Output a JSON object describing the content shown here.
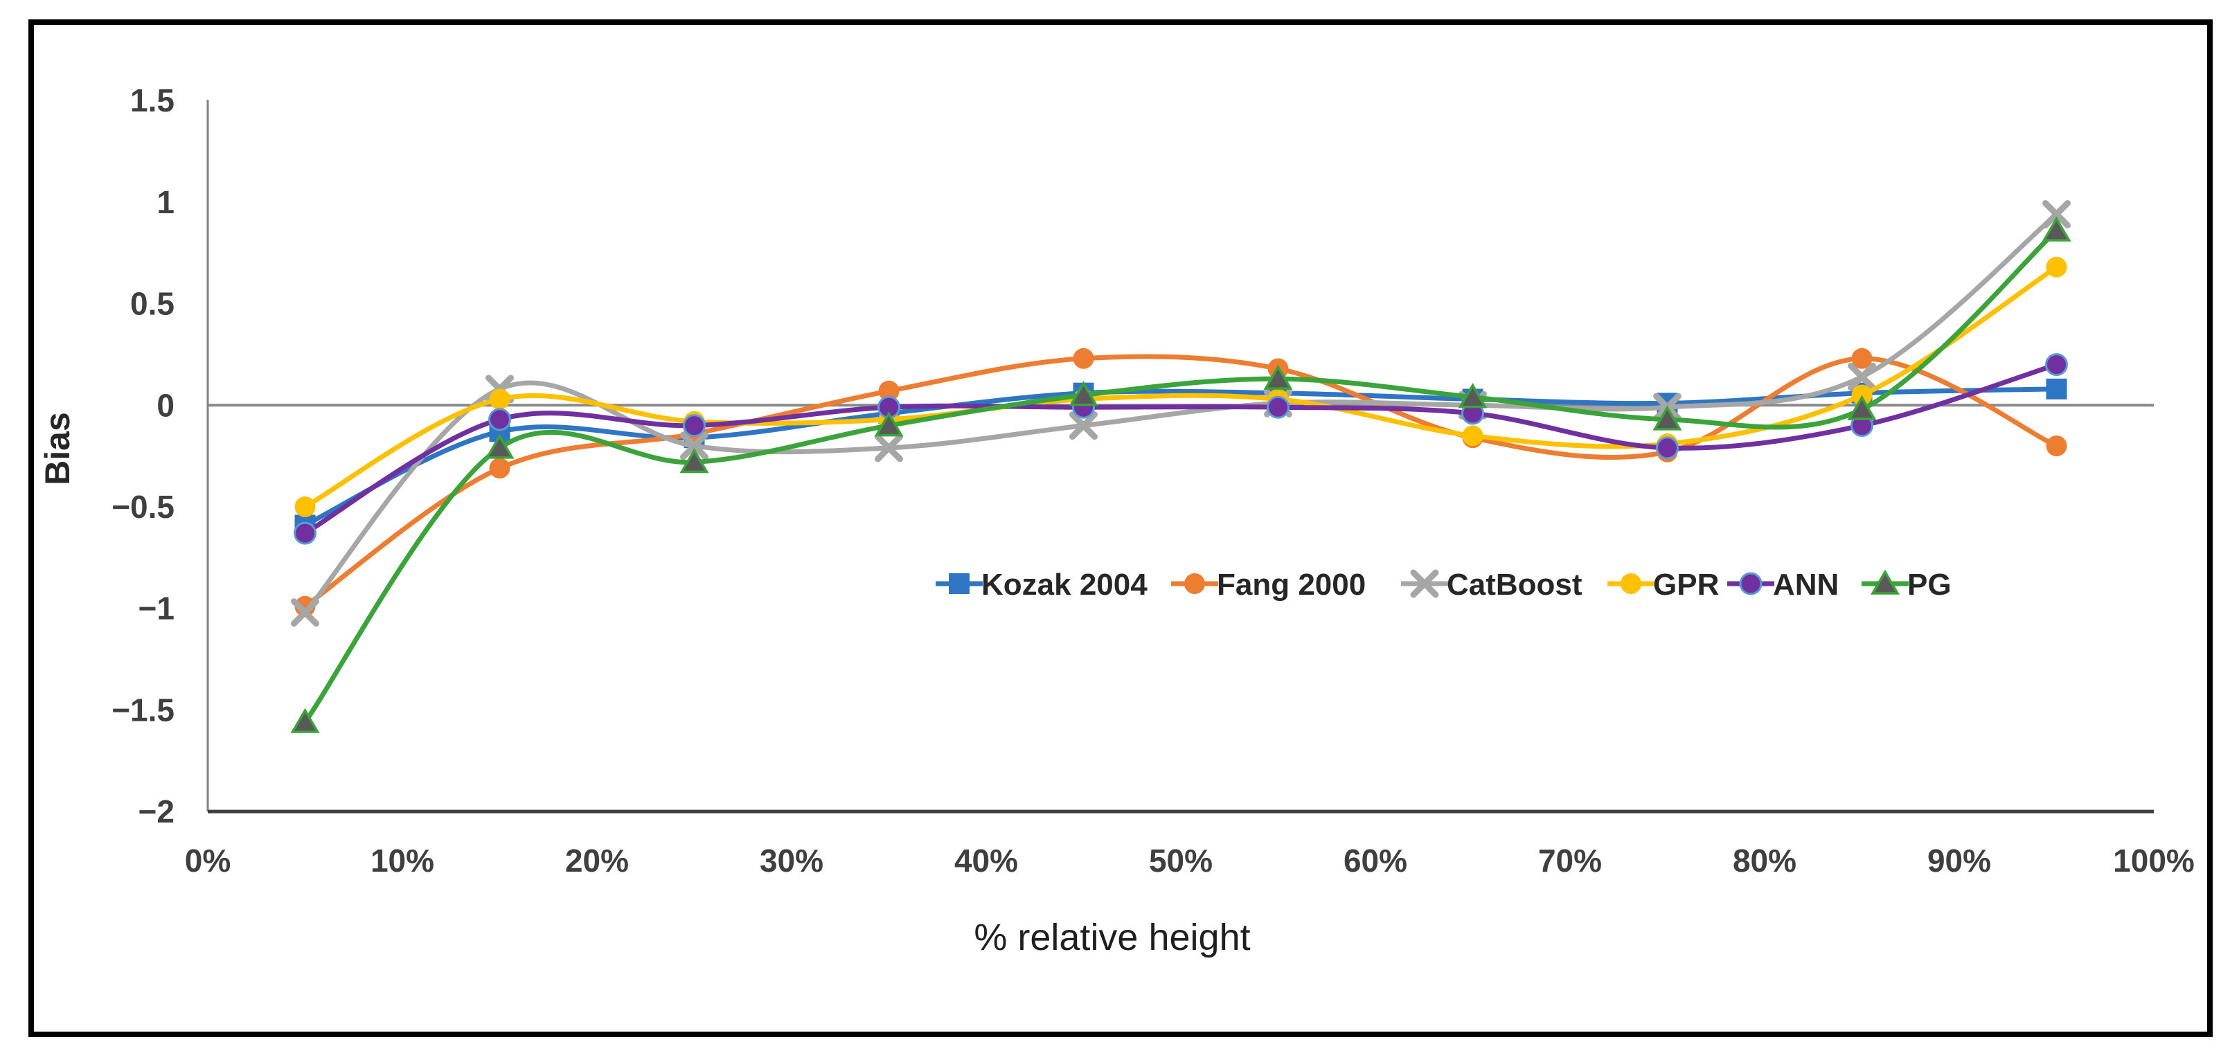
{
  "figure": {
    "background": "#ffffff",
    "border_color": "#000000"
  },
  "chart_data": {
    "type": "line",
    "style": "smoothed-lines-with-markers",
    "title": "",
    "xlabel": "% relative height",
    "ylabel": "Bias",
    "ylim": [
      -2,
      1.5
    ],
    "xlim_pct": [
      0,
      100
    ],
    "grid": "zero-line-only",
    "legend_position": "inside-plot-center-right",
    "x_pct": [
      5,
      15,
      25,
      35,
      45,
      55,
      65,
      75,
      85,
      95
    ],
    "x_tick_values": [
      0,
      10,
      20,
      30,
      40,
      50,
      60,
      70,
      80,
      90,
      100
    ],
    "x_tick_labels": [
      "0%",
      "10%",
      "20%",
      "30%",
      "40%",
      "50%",
      "60%",
      "70%",
      "80%",
      "90%",
      "100%"
    ],
    "y_tick_values": [
      1.5,
      1,
      0.5,
      0,
      -0.5,
      -1,
      -1.5,
      -2
    ],
    "y_tick_labels": [
      "1.5",
      "1",
      "0.5",
      "0",
      "−0.5",
      "−1",
      "−1.5",
      "−2"
    ],
    "axis_line_color": "#808080",
    "zero_line_color": "#898989",
    "bottom_axis_color": "#3f3f3f",
    "tick_label_color": "#3f3f3f",
    "series": [
      {
        "name": "Kozak 2004",
        "color": "#2E75C3",
        "marker": "square",
        "values": [
          -0.59,
          -0.13,
          -0.16,
          -0.04,
          0.06,
          0.06,
          0.03,
          0.01,
          0.06,
          0.08
        ]
      },
      {
        "name": "Fang 2000",
        "color": "#ED7D31",
        "marker": "circle",
        "values": [
          -0.99,
          -0.31,
          -0.14,
          0.07,
          0.23,
          0.18,
          -0.16,
          -0.23,
          0.23,
          -0.2
        ]
      },
      {
        "name": "CatBoost",
        "color": "#A6A6A6",
        "marker": "x",
        "values": [
          -1.02,
          0.08,
          -0.2,
          -0.21,
          -0.1,
          0.01,
          0.0,
          -0.01,
          0.14,
          0.94
        ]
      },
      {
        "name": "GPR",
        "color": "#FFC000",
        "marker": "circle",
        "values": [
          -0.5,
          0.03,
          -0.08,
          -0.07,
          0.03,
          0.03,
          -0.15,
          -0.19,
          0.05,
          0.68
        ]
      },
      {
        "name": "ANN",
        "color": "#7030A0",
        "marker": "circle",
        "marker_stroke": "#5B9BD5",
        "values": [
          -0.63,
          -0.07,
          -0.1,
          -0.01,
          -0.01,
          -0.01,
          -0.04,
          -0.21,
          -0.1,
          0.2
        ]
      },
      {
        "name": "PG",
        "color": "#3AA43A",
        "marker": "triangle",
        "marker_fill": "#595959",
        "values": [
          -1.56,
          -0.21,
          -0.28,
          -0.1,
          0.05,
          0.13,
          0.04,
          -0.07,
          -0.02,
          0.86
        ]
      }
    ]
  }
}
